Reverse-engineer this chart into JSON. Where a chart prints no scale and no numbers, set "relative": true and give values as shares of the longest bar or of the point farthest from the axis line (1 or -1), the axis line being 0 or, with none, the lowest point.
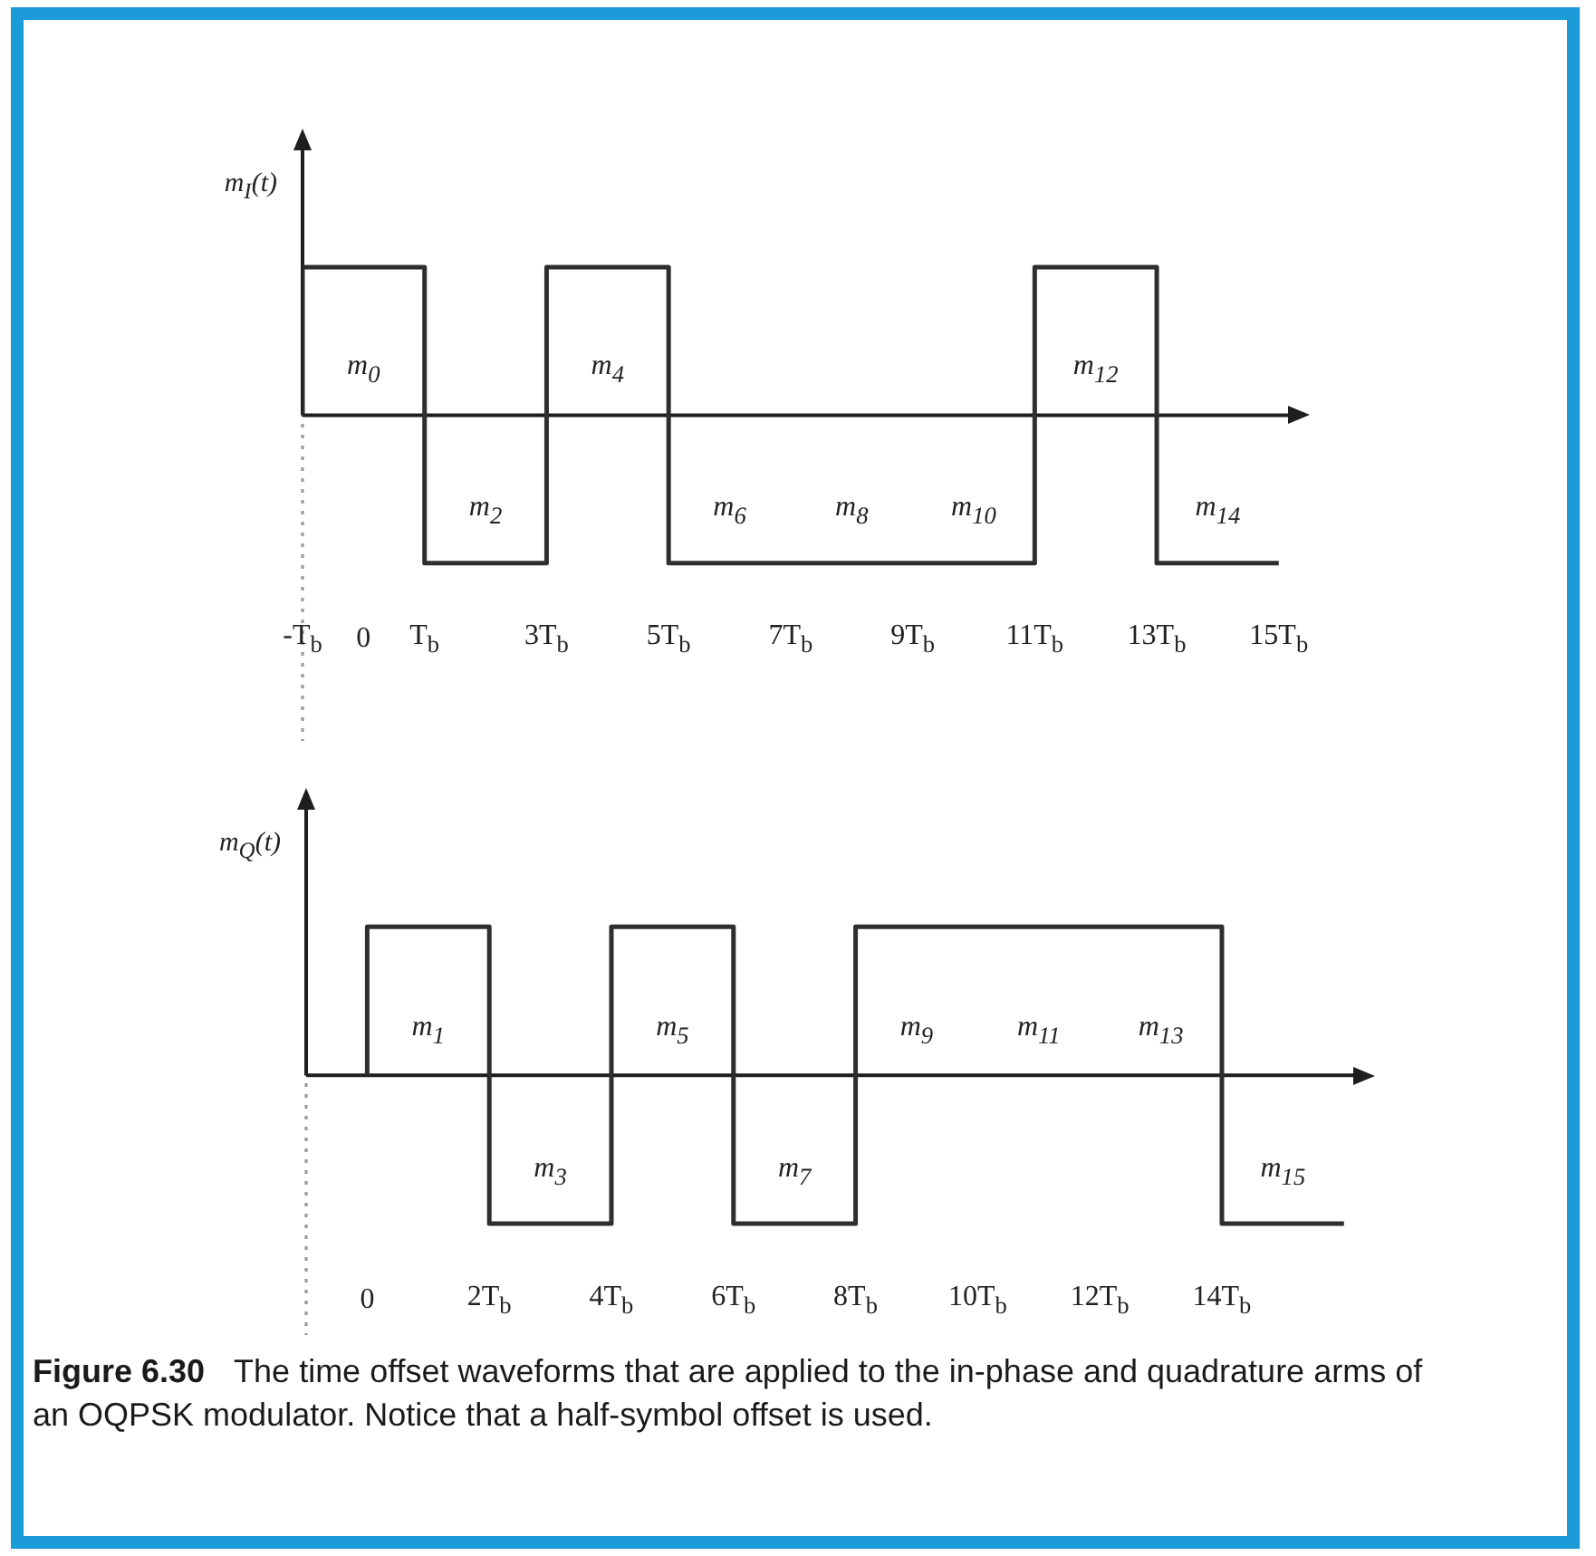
{
  "chart_data": [
    {
      "type": "step",
      "relative": true,
      "ylabel": "m$_{I}$(t)",
      "x": [
        -1,
        -1,
        1,
        3,
        5,
        11,
        13,
        15
      ],
      "values": [
        0,
        1,
        -1,
        1,
        -1,
        1,
        -1,
        -1
      ],
      "color": "#2e2e2e",
      "xlim": [
        -1,
        15.3
      ],
      "xticks": [
        {
          "value": -1,
          "label": "-T$_{b}$"
        },
        0,
        {
          "value": 1,
          "label": "T$_{b}$"
        },
        {
          "value": 3,
          "label": "3T$_{b}$"
        },
        {
          "value": 5,
          "label": "5T$_{b}$"
        },
        {
          "value": 7,
          "label": "7T$_{b}$"
        },
        {
          "value": 9,
          "label": "9T$_{b}$"
        },
        {
          "value": 11,
          "label": "11T$_{b}$"
        },
        {
          "value": 13,
          "label": "13T$_{b}$"
        },
        {
          "value": 15,
          "label": "15T$_{b}$"
        }
      ],
      "ref_lines": [
        {
          "axis": "x",
          "value": -1,
          "color": "#9a9a9a",
          "line_style": "dotted"
        }
      ],
      "annotations": [
        {
          "text": "m$_{0}$",
          "x": 0,
          "y": 1
        },
        {
          "text": "m$_{2}$",
          "x": 2,
          "y": -1
        },
        {
          "text": "m$_{4}$",
          "x": 4,
          "y": 1
        },
        {
          "text": "m$_{6}$",
          "x": 6,
          "y": -1
        },
        {
          "text": "m$_{8}$",
          "x": 8,
          "y": -1
        },
        {
          "text": "m$_{10}$",
          "x": 10,
          "y": -1
        },
        {
          "text": "m$_{12}$",
          "x": 12,
          "y": 1
        },
        {
          "text": "m$_{14}$",
          "x": 14,
          "y": -1
        }
      ]
    },
    {
      "type": "step",
      "relative": true,
      "ylabel": "m$_{Q}$(t)",
      "x": [
        0,
        0,
        2,
        4,
        6,
        8,
        14,
        16
      ],
      "values": [
        0,
        1,
        -1,
        1,
        -1,
        1,
        -1,
        -1
      ],
      "color": "#2e2e2e",
      "xlim": [
        -1,
        16.3
      ],
      "xticks": [
        0,
        {
          "value": 2,
          "label": "2T$_{b}$"
        },
        {
          "value": 4,
          "label": "4T$_{b}$"
        },
        {
          "value": 6,
          "label": "6T$_{b}$"
        },
        {
          "value": 8,
          "label": "8T$_{b}$"
        },
        {
          "value": 10,
          "label": "10T$_{b}$"
        },
        {
          "value": 12,
          "label": "12T$_{b}$"
        },
        {
          "value": 14,
          "label": "14T$_{b}$"
        }
      ],
      "ref_lines": [
        {
          "axis": "x",
          "value": -1,
          "color": "#9a9a9a",
          "line_style": "dotted"
        }
      ],
      "annotations": [
        {
          "text": "m$_{1}$",
          "x": 1,
          "y": 1
        },
        {
          "text": "m$_{3}$",
          "x": 3,
          "y": -1
        },
        {
          "text": "m$_{5}$",
          "x": 5,
          "y": 1
        },
        {
          "text": "m$_{7}$",
          "x": 7,
          "y": -1
        },
        {
          "text": "m$_{9}$",
          "x": 9,
          "y": 1
        },
        {
          "text": "m$_{11}$",
          "x": 11,
          "y": 1
        },
        {
          "text": "m$_{13}$",
          "x": 13,
          "y": 1
        },
        {
          "text": "m$_{15}$",
          "x": 15,
          "y": -1
        },
        "Figure 6.30",
        "The time offset waveforms that are applied to the in-phase and quadrature arms of",
        "an OQPSK modulator. Notice that a half-symbol offset is used."
      ]
    }
  ]
}
